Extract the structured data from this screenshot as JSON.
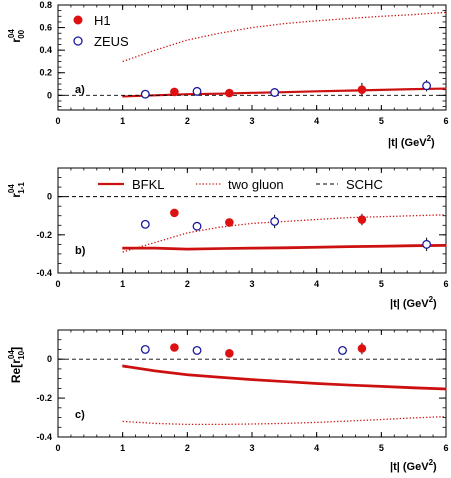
{
  "colors": {
    "model": "#cc1111",
    "h1": "#dd1111",
    "zeus": "#1a1aa0",
    "axis": "#000000"
  },
  "legend_top": [
    {
      "name": "H1",
      "marker": "filled-circle"
    },
    {
      "name": "ZEUS",
      "marker": "open-circle"
    }
  ],
  "legend_models": [
    {
      "name": "BFKL",
      "style": "solid"
    },
    {
      "name": "two gluon",
      "style": "dotted"
    },
    {
      "name": "SCHC",
      "style": "dashed"
    }
  ],
  "chart_data": [
    {
      "type": "scatter",
      "panel_label": "a)",
      "ylabel": {
        "main": "r",
        "sup": "04",
        "sub": "00",
        "prefix": "",
        "suffix": ""
      },
      "xlabel": {
        "main": "|t| (GeV",
        "sup": "2",
        "close": ")"
      },
      "xlim": [
        0,
        6
      ],
      "ylim": [
        -0.13,
        0.8
      ],
      "xticks": [
        0,
        1,
        2,
        3,
        4,
        5,
        6
      ],
      "yticks": [
        0,
        0.2,
        0.4,
        0.6,
        0.8
      ],
      "ytick_labels": [
        "0",
        "0.2",
        "0.4",
        "0.6",
        "0.8"
      ],
      "series": [
        {
          "name": "H1",
          "kind": "filled",
          "x": [
            1.8,
            2.65,
            4.7
          ],
          "y": [
            0.03,
            0.02,
            0.05
          ],
          "err": [
            0.015,
            0.015,
            0.06
          ]
        },
        {
          "name": "ZEUS",
          "kind": "open",
          "x": [
            1.35,
            2.15,
            3.35,
            5.7
          ],
          "y": [
            0.01,
            0.035,
            0.025,
            0.085
          ],
          "err": [
            0.012,
            0.015,
            0.035,
            0.05
          ]
        }
      ],
      "curves": [
        {
          "name": "BFKL",
          "style": "band",
          "x": [
            1.0,
            1.5,
            2.0,
            2.5,
            3.0,
            3.5,
            4.0,
            4.5,
            5.0,
            5.5,
            6.0
          ],
          "y": [
            -0.01,
            0.0,
            0.01,
            0.015,
            0.022,
            0.028,
            0.035,
            0.042,
            0.048,
            0.055,
            0.06
          ],
          "width": 0.012
        },
        {
          "name": "two gluon",
          "style": "dotted",
          "x": [
            1.0,
            1.5,
            2.0,
            2.5,
            3.0,
            3.5,
            4.0,
            4.5,
            5.0,
            5.5,
            6.0
          ],
          "y": [
            0.3,
            0.4,
            0.49,
            0.55,
            0.6,
            0.635,
            0.66,
            0.68,
            0.7,
            0.715,
            0.735
          ]
        },
        {
          "name": "SCHC",
          "style": "dashed",
          "x": [
            0,
            6
          ],
          "y": [
            0,
            0
          ]
        }
      ]
    },
    {
      "type": "scatter",
      "panel_label": "b)",
      "ylabel": {
        "main": "r",
        "sup": "04",
        "sub": "1-1",
        "prefix": "",
        "suffix": ""
      },
      "xlabel": {
        "main": "|t| (GeV",
        "sup": "2",
        "close": ")"
      },
      "xlim": [
        0,
        6
      ],
      "ylim": [
        -0.4,
        0.15
      ],
      "xticks": [
        0,
        1,
        2,
        3,
        4,
        5,
        6
      ],
      "yticks": [
        -0.4,
        -0.2,
        0
      ],
      "ytick_labels": [
        "-0.4",
        "-0.2",
        "0"
      ],
      "series": [
        {
          "name": "H1",
          "kind": "filled",
          "x": [
            1.8,
            2.65,
            4.7
          ],
          "y": [
            -0.085,
            -0.135,
            -0.12
          ],
          "err": [
            0.012,
            0.02,
            0.03
          ]
        },
        {
          "name": "ZEUS",
          "kind": "open",
          "x": [
            1.35,
            2.15,
            3.35,
            5.7
          ],
          "y": [
            -0.145,
            -0.155,
            -0.13,
            -0.25
          ],
          "err": [
            0.02,
            0.02,
            0.035,
            0.035
          ]
        }
      ],
      "curves": [
        {
          "name": "BFKL",
          "style": "band",
          "x": [
            1.0,
            1.5,
            2.0,
            2.5,
            3.0,
            3.5,
            4.0,
            4.5,
            5.0,
            5.5,
            6.0
          ],
          "y": [
            -0.27,
            -0.27,
            -0.275,
            -0.272,
            -0.27,
            -0.268,
            -0.265,
            -0.262,
            -0.26,
            -0.257,
            -0.255
          ],
          "width": 0.01
        },
        {
          "name": "two gluon",
          "style": "dotted",
          "x": [
            1.0,
            1.5,
            2.0,
            2.5,
            3.0,
            3.5,
            4.0,
            4.5,
            5.0,
            5.5,
            6.0
          ],
          "y": [
            -0.29,
            -0.24,
            -0.19,
            -0.16,
            -0.14,
            -0.13,
            -0.12,
            -0.11,
            -0.105,
            -0.1,
            -0.095
          ]
        },
        {
          "name": "SCHC",
          "style": "dashed",
          "x": [
            0,
            6
          ],
          "y": [
            0,
            0
          ]
        }
      ]
    },
    {
      "type": "scatter",
      "panel_label": "c)",
      "ylabel": {
        "main": "r",
        "sup": "04",
        "sub": "10",
        "prefix": "Re[",
        "suffix": "]"
      },
      "xlabel": {
        "main": "|t| (GeV",
        "sup": "2",
        "close": ")"
      },
      "xlim": [
        0,
        6
      ],
      "ylim": [
        -0.4,
        0.15
      ],
      "xticks": [
        0,
        1,
        2,
        3,
        4,
        5,
        6
      ],
      "yticks": [
        -0.4,
        -0.2,
        0
      ],
      "ytick_labels": [
        "-0.4",
        "-0.2",
        "0"
      ],
      "series": [
        {
          "name": "H1",
          "kind": "filled",
          "x": [
            1.8,
            2.65,
            4.7
          ],
          "y": [
            0.06,
            0.03,
            0.055
          ],
          "err": [
            0.012,
            0.02,
            0.03
          ]
        },
        {
          "name": "ZEUS",
          "kind": "open",
          "x": [
            1.35,
            2.15,
            4.4
          ],
          "y": [
            0.05,
            0.045,
            0.045
          ],
          "err": [
            0.012,
            0.012,
            0.015
          ]
        }
      ],
      "curves": [
        {
          "name": "BFKL",
          "style": "band",
          "x": [
            1.0,
            1.5,
            2.0,
            2.5,
            3.0,
            3.5,
            4.0,
            4.5,
            5.0,
            5.5,
            6.0
          ],
          "y": [
            -0.035,
            -0.06,
            -0.08,
            -0.093,
            -0.105,
            -0.115,
            -0.125,
            -0.133,
            -0.14,
            -0.147,
            -0.153
          ],
          "width": 0.01
        },
        {
          "name": "two gluon",
          "style": "dotted",
          "x": [
            1.0,
            1.5,
            2.0,
            2.5,
            3.0,
            3.5,
            4.0,
            4.5,
            5.0,
            5.5,
            6.0
          ],
          "y": [
            -0.32,
            -0.33,
            -0.335,
            -0.335,
            -0.333,
            -0.33,
            -0.325,
            -0.318,
            -0.31,
            -0.302,
            -0.295
          ]
        },
        {
          "name": "SCHC",
          "style": "dashed",
          "x": [
            0,
            6
          ],
          "y": [
            0,
            0
          ]
        }
      ]
    }
  ]
}
